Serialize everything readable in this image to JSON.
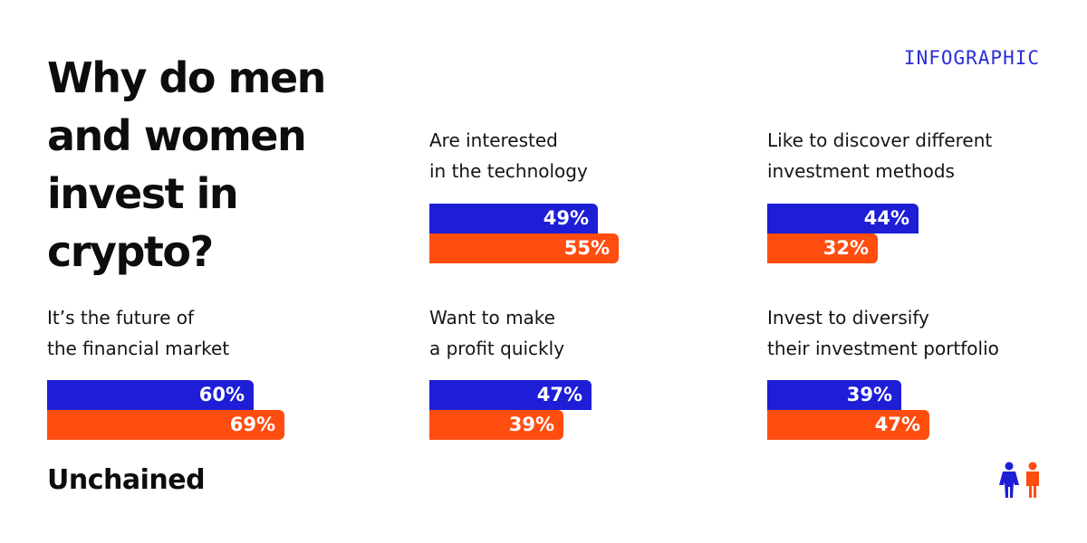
{
  "title": "Why do men and women invest in crypto?",
  "tag": "INFOGRAPHIC",
  "brand": "Unchained",
  "colors": {
    "blue": "#1d1ed6",
    "orange": "#ff4d10",
    "tag": "#2b2ed6"
  },
  "icons": [
    "person-blue-icon",
    "person-orange-icon"
  ],
  "chart_data": {
    "type": "bar",
    "categories": [
      "It’s the future of the financial market",
      "Are interested in the technology",
      "Want to make a profit quickly",
      "Like to discover different investment methods",
      "Invest to diversify their investment portfolio"
    ],
    "category_lines": [
      [
        "It’s the future of",
        "the financial market"
      ],
      [
        "Are interested",
        "in the technology"
      ],
      [
        "Want to make",
        "a profit quickly"
      ],
      [
        "Like to discover different",
        "investment methods"
      ],
      [
        "Invest to diversify",
        "their investment portfolio"
      ]
    ],
    "series": [
      {
        "color": "#1d1ed6",
        "values": [
          60,
          49,
          47,
          44,
          39
        ]
      },
      {
        "color": "#ff4d10",
        "values": [
          69,
          55,
          39,
          32,
          47
        ]
      }
    ],
    "value_labels": [
      [
        "60%",
        "49%",
        "47%",
        "44%",
        "39%"
      ],
      [
        "69%",
        "55%",
        "39%",
        "32%",
        "47%"
      ]
    ],
    "unit": "%",
    "xlim": [
      0,
      100
    ]
  }
}
